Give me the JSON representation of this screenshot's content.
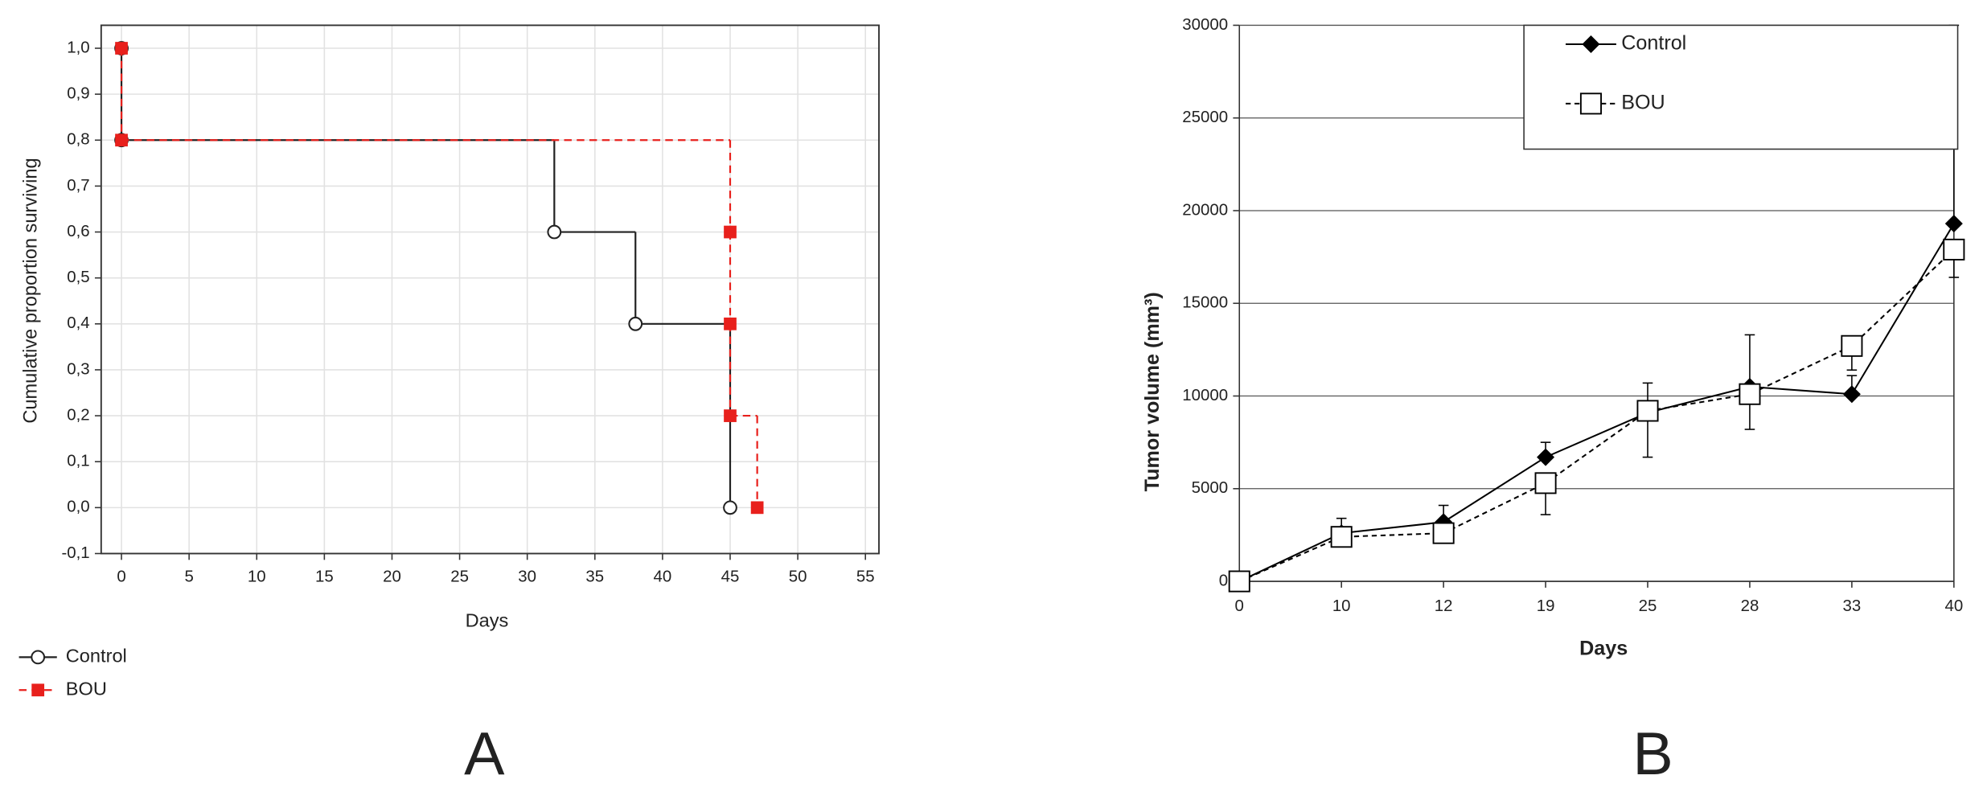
{
  "chart_data": [
    {
      "type": "step",
      "panel_label": "A",
      "x_label": "Days",
      "y_label": "Cumulative proportion surviving",
      "xlim": [
        -1.5,
        56
      ],
      "ylim": [
        -0.1,
        1.05
      ],
      "xticks": [
        0,
        5,
        10,
        15,
        20,
        25,
        30,
        35,
        40,
        45,
        50,
        55
      ],
      "yticks": [
        {
          "value": -0.1,
          "label": "-0,1"
        },
        {
          "value": 0.0,
          "label": "0,0"
        },
        {
          "value": 0.1,
          "label": "0,1"
        },
        {
          "value": 0.2,
          "label": "0,2"
        },
        {
          "value": 0.3,
          "label": "0,3"
        },
        {
          "value": 0.4,
          "label": "0,4"
        },
        {
          "value": 0.5,
          "label": "0,5"
        },
        {
          "value": 0.6,
          "label": "0,6"
        },
        {
          "value": 0.7,
          "label": "0,7"
        },
        {
          "value": 0.8,
          "label": "0,8"
        },
        {
          "value": 0.9,
          "label": "0,9"
        },
        {
          "value": 1.0,
          "label": "1,0"
        }
      ],
      "grid": true,
      "legend": "bottom-left",
      "series": [
        {
          "name": "Control",
          "color": "#222222",
          "marker": "open-circle",
          "dashed": false,
          "x": [
            0,
            0,
            32,
            38,
            45
          ],
          "values": [
            1.0,
            0.8,
            0.6,
            0.4,
            0.0
          ]
        },
        {
          "name": "BOU",
          "color": "#e8201c",
          "marker": "filled-square",
          "dashed": true,
          "x": [
            0,
            0,
            45,
            45,
            45,
            47
          ],
          "values": [
            1.0,
            0.8,
            0.6,
            0.4,
            0.2,
            0.0
          ]
        }
      ]
    },
    {
      "type": "line",
      "panel_label": "B",
      "x_label": "Days",
      "y_label": "Tumor volume (mm³)",
      "categories": [
        "0",
        "10",
        "12",
        "19",
        "25",
        "28",
        "33",
        "40"
      ],
      "ylim": [
        0,
        30000
      ],
      "yticks": [
        0,
        5000,
        10000,
        15000,
        20000,
        25000,
        30000
      ],
      "grid": true,
      "legend": "upper right",
      "series": [
        {
          "name": "Control",
          "color": "#000000",
          "marker": "filled-diamond",
          "dashed": false,
          "error_direction": "up",
          "values": [
            0,
            2600,
            3200,
            6700,
            9100,
            10500,
            10100,
            19300
          ],
          "errors": [
            0,
            800,
            900,
            800,
            1600,
            2800,
            1000,
            10700
          ]
        },
        {
          "name": "BOU",
          "color": "#000000",
          "marker": "open-square",
          "dashed": true,
          "error_direction": "down",
          "values": [
            0,
            2400,
            2600,
            5300,
            9200,
            10100,
            12700,
            17900
          ],
          "errors": [
            0,
            300,
            300,
            1700,
            2500,
            1900,
            1300,
            1500
          ]
        }
      ]
    }
  ]
}
